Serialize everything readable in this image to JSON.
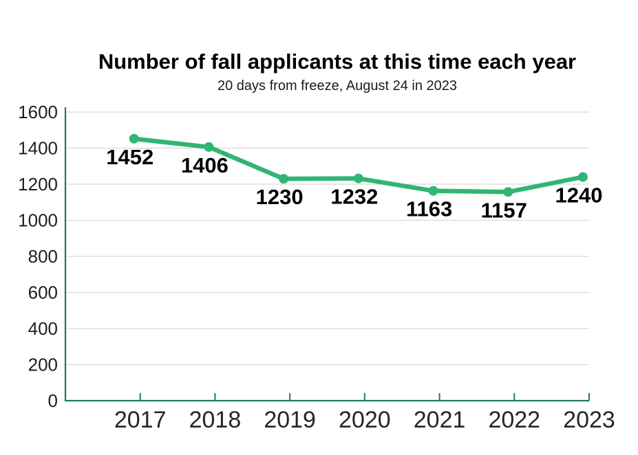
{
  "chart_data": {
    "type": "line",
    "title": "Number of fall applicants at this time each year",
    "subtitle": "20 days from freeze, August 24 in 2023",
    "categories": [
      "2017",
      "2018",
      "2019",
      "2020",
      "2021",
      "2022",
      "2023"
    ],
    "series": [
      {
        "name": "fall-applicants",
        "values": [
          1452,
          1406,
          1230,
          1232,
          1163,
          1157,
          1240
        ]
      }
    ],
    "data_labels": [
      "1452",
      "1406",
      "1230",
      "1232",
      "1163",
      "1157",
      "1240"
    ],
    "xlabel": "",
    "ylabel": "",
    "ylim": [
      0,
      1600
    ],
    "ytick_step": 200,
    "yticks": [
      "0",
      "200",
      "400",
      "600",
      "800",
      "1000",
      "1200",
      "1400",
      "1600"
    ],
    "grid": true,
    "legend_position": "none",
    "colors": {
      "line": "#31b573",
      "marker": "#31b573",
      "axis": "#1b7a64",
      "gridline": "#d9d9d9",
      "value_label": "#000000",
      "background": "#ffffff"
    }
  }
}
